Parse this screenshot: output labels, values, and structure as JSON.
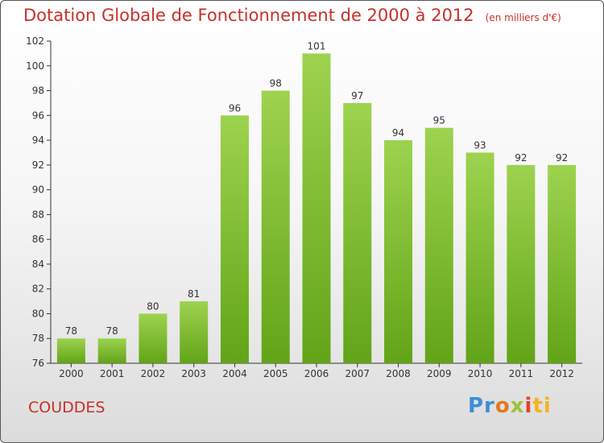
{
  "header": {
    "title": "Dotation Globale de Fonctionnement de 2000 à 2012",
    "unit": "(en milliers d'€)"
  },
  "footer": {
    "commune": "COUDDES",
    "logo": "Proxiti",
    "logo_parts": [
      "Pr",
      "o",
      "x",
      "i",
      "ti"
    ]
  },
  "colors": {
    "bar_top": "#9dd34f",
    "bar_bottom": "#62a417",
    "title": "#c8302a",
    "axis": "#333333"
  },
  "chart_data": {
    "type": "bar",
    "categories": [
      "2000",
      "2001",
      "2002",
      "2003",
      "2004",
      "2005",
      "2006",
      "2007",
      "2008",
      "2009",
      "2010",
      "2011",
      "2012"
    ],
    "values": [
      78,
      78,
      80,
      81,
      96,
      98,
      101,
      97,
      94,
      95,
      93,
      92,
      92
    ],
    "title": "Dotation Globale de Fonctionnement de 2000 à 2012",
    "ylim": [
      76,
      102
    ],
    "yticks": [
      76,
      78,
      80,
      82,
      84,
      86,
      88,
      90,
      92,
      94,
      96,
      98,
      100,
      102
    ],
    "grid": false,
    "data_labels": true
  }
}
